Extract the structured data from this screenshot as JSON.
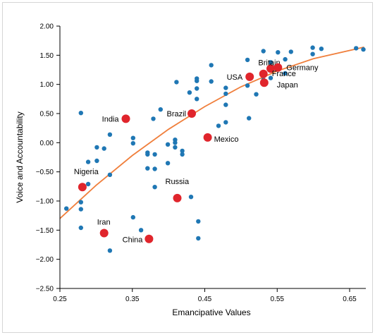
{
  "chart_data": {
    "type": "scatter",
    "title": "",
    "xlabel": "Emancipative Values",
    "ylabel": "Voice and Accountability",
    "xlim": [
      0.25,
      0.68
    ],
    "ylim": [
      -2.5,
      2.0
    ],
    "x_ticks": [
      "0.25",
      "0.35",
      "0.45",
      "0.55",
      "0.65"
    ],
    "y_ticks": [
      "2.00",
      "1.50",
      "1.00",
      "0.50",
      "0.00",
      "−0.50",
      "−1.00",
      "−1.50",
      "−2.00",
      "−2.50"
    ],
    "x_tick_values": [
      0.25,
      0.35,
      0.45,
      0.55,
      0.65
    ],
    "y_tick_values": [
      2.0,
      1.5,
      1.0,
      0.5,
      0.0,
      -0.5,
      -1.0,
      -1.5,
      -2.0,
      -2.5
    ],
    "grid": false,
    "colors": {
      "blue": "#1f77b4",
      "red": "#e0252c",
      "fit": "#f07f3c"
    },
    "labeled_points": [
      {
        "label": "Britain",
        "x": 0.541,
        "y": 1.27
      },
      {
        "label": "Germany",
        "x": 0.551,
        "y": 1.29
      },
      {
        "label": "USA",
        "x": 0.512,
        "y": 1.13
      },
      {
        "label": "France",
        "x": 0.531,
        "y": 1.18
      },
      {
        "label": "Japan",
        "x": 0.532,
        "y": 1.03
      },
      {
        "label": "India",
        "x": 0.341,
        "y": 0.41
      },
      {
        "label": "Brazil",
        "x": 0.432,
        "y": 0.5
      },
      {
        "label": "Mexico",
        "x": 0.454,
        "y": 0.09
      },
      {
        "label": "Nigeria",
        "x": 0.281,
        "y": -0.76
      },
      {
        "label": "Russia",
        "x": 0.412,
        "y": -0.95
      },
      {
        "label": "Iran",
        "x": 0.311,
        "y": -1.55
      },
      {
        "label": "China",
        "x": 0.373,
        "y": -1.65
      }
    ],
    "points": [
      {
        "x": 0.259,
        "y": -1.13
      },
      {
        "x": 0.279,
        "y": 0.51
      },
      {
        "x": 0.279,
        "y": -1.02
      },
      {
        "x": 0.279,
        "y": -1.14
      },
      {
        "x": 0.279,
        "y": -1.46
      },
      {
        "x": 0.289,
        "y": -0.71
      },
      {
        "x": 0.289,
        "y": -0.33
      },
      {
        "x": 0.301,
        "y": -0.31
      },
      {
        "x": 0.301,
        "y": -0.08
      },
      {
        "x": 0.311,
        "y": -0.1
      },
      {
        "x": 0.319,
        "y": 0.14
      },
      {
        "x": 0.319,
        "y": -0.55
      },
      {
        "x": 0.319,
        "y": -1.85
      },
      {
        "x": 0.351,
        "y": 0.08
      },
      {
        "x": 0.351,
        "y": -0.01
      },
      {
        "x": 0.351,
        "y": -1.28
      },
      {
        "x": 0.362,
        "y": -1.5
      },
      {
        "x": 0.371,
        "y": -0.17
      },
      {
        "x": 0.371,
        "y": -0.2
      },
      {
        "x": 0.371,
        "y": -0.44
      },
      {
        "x": 0.379,
        "y": 0.41
      },
      {
        "x": 0.381,
        "y": -0.2
      },
      {
        "x": 0.381,
        "y": -0.45
      },
      {
        "x": 0.381,
        "y": -0.76
      },
      {
        "x": 0.389,
        "y": 0.57
      },
      {
        "x": 0.399,
        "y": -0.03
      },
      {
        "x": 0.399,
        "y": -0.35
      },
      {
        "x": 0.409,
        "y": 0.05
      },
      {
        "x": 0.409,
        "y": 0.0
      },
      {
        "x": 0.409,
        "y": -0.08
      },
      {
        "x": 0.411,
        "y": 1.04
      },
      {
        "x": 0.419,
        "y": -0.14
      },
      {
        "x": 0.419,
        "y": -0.2
      },
      {
        "x": 0.429,
        "y": 0.86
      },
      {
        "x": 0.431,
        "y": -0.93
      },
      {
        "x": 0.439,
        "y": 1.1
      },
      {
        "x": 0.439,
        "y": 1.06
      },
      {
        "x": 0.439,
        "y": 0.93
      },
      {
        "x": 0.439,
        "y": 0.75
      },
      {
        "x": 0.441,
        "y": -1.35
      },
      {
        "x": 0.441,
        "y": -1.64
      },
      {
        "x": 0.459,
        "y": 1.33
      },
      {
        "x": 0.459,
        "y": 1.05
      },
      {
        "x": 0.469,
        "y": 0.29
      },
      {
        "x": 0.479,
        "y": 0.94
      },
      {
        "x": 0.479,
        "y": 0.84
      },
      {
        "x": 0.479,
        "y": 0.65
      },
      {
        "x": 0.479,
        "y": 0.35
      },
      {
        "x": 0.509,
        "y": 1.42
      },
      {
        "x": 0.509,
        "y": 0.98
      },
      {
        "x": 0.511,
        "y": 0.42
      },
      {
        "x": 0.521,
        "y": 0.83
      },
      {
        "x": 0.531,
        "y": 1.57
      },
      {
        "x": 0.531,
        "y": 1.08
      },
      {
        "x": 0.541,
        "y": 1.38
      },
      {
        "x": 0.541,
        "y": 1.11
      },
      {
        "x": 0.551,
        "y": 1.55
      },
      {
        "x": 0.561,
        "y": 1.43
      },
      {
        "x": 0.561,
        "y": 1.19
      },
      {
        "x": 0.569,
        "y": 1.56
      },
      {
        "x": 0.599,
        "y": 1.63
      },
      {
        "x": 0.599,
        "y": 1.52
      },
      {
        "x": 0.611,
        "y": 1.61
      },
      {
        "x": 0.659,
        "y": 1.62
      },
      {
        "x": 0.669,
        "y": 1.6
      }
    ],
    "fit_line": [
      {
        "x": 0.25,
        "y": -1.3
      },
      {
        "x": 0.3,
        "y": -0.73
      },
      {
        "x": 0.35,
        "y": -0.22
      },
      {
        "x": 0.4,
        "y": 0.23
      },
      {
        "x": 0.45,
        "y": 0.62
      },
      {
        "x": 0.5,
        "y": 0.96
      },
      {
        "x": 0.55,
        "y": 1.23
      },
      {
        "x": 0.6,
        "y": 1.44
      },
      {
        "x": 0.67,
        "y": 1.64
      }
    ]
  }
}
